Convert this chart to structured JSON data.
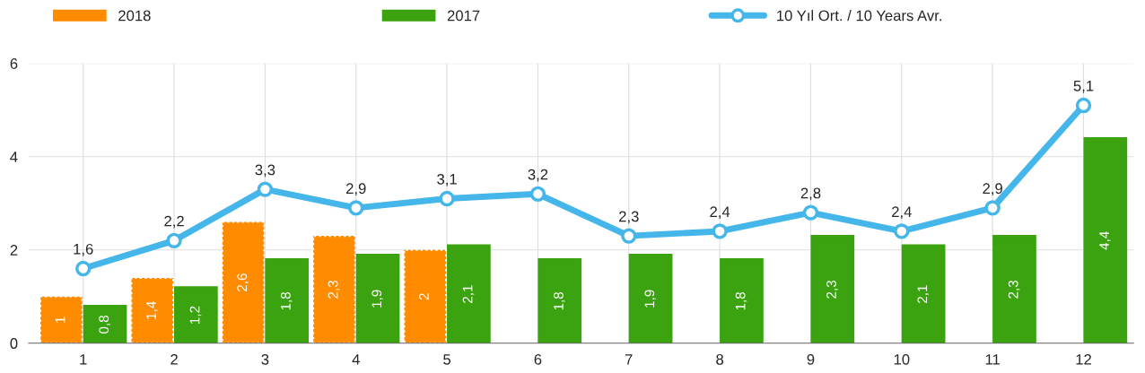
{
  "chart_data": {
    "type": "bar",
    "categories": [
      "1",
      "2",
      "3",
      "4",
      "5",
      "6",
      "7",
      "8",
      "9",
      "10",
      "11",
      "12"
    ],
    "series": [
      {
        "name": "2018",
        "color": "#ff8c00",
        "values": [
          1,
          1.4,
          2.6,
          2.3,
          2,
          null,
          null,
          null,
          null,
          null,
          null,
          null
        ],
        "value_labels": [
          "1",
          "1,4",
          "2,6",
          "2,3",
          "2",
          null,
          null,
          null,
          null,
          null,
          null,
          null
        ]
      },
      {
        "name": "2017",
        "color": "#3aa30f",
        "values": [
          0.8,
          1.2,
          1.8,
          1.9,
          2.1,
          1.8,
          1.9,
          1.8,
          2.3,
          2.1,
          2.3,
          4.4
        ],
        "value_labels": [
          "0,8",
          "1,2",
          "1,8",
          "1,9",
          "2,1",
          "1,8",
          "1,9",
          "1,8",
          "2,3",
          "2,1",
          "2,3",
          "4,4"
        ]
      },
      {
        "name": "10 Yıl Ort. / 10 Years Avr.",
        "type": "line",
        "color": "#45b6ea",
        "marker": "circle",
        "values": [
          1.6,
          2.2,
          3.3,
          2.9,
          3.1,
          3.2,
          2.3,
          2.4,
          2.8,
          2.4,
          2.9,
          5.1
        ],
        "value_labels": [
          "1,6",
          "2,2",
          "3,3",
          "2,9",
          "3,1",
          "3,2",
          "2,3",
          "2,4",
          "2,8",
          "2,4",
          "2,9",
          "5,1"
        ]
      }
    ],
    "ylim": [
      0,
      6
    ],
    "yticks": [
      0,
      2,
      4,
      6
    ],
    "grid": true,
    "legend": "top"
  }
}
